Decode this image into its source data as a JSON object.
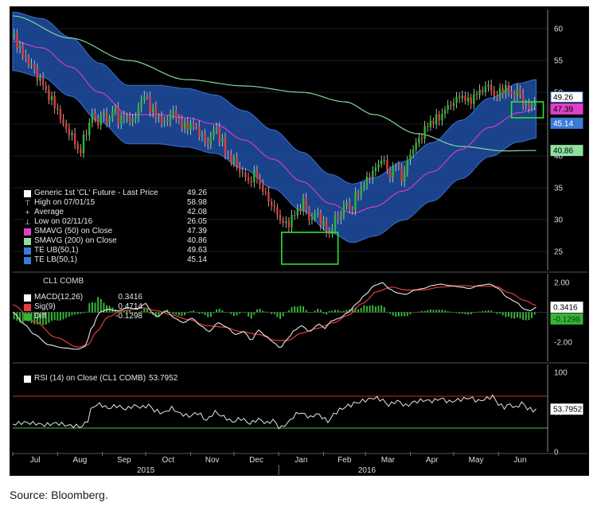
{
  "colors": {
    "background": "#000000",
    "candle_up": "#2db82d",
    "candle_down": "#e03c3c",
    "wick_up": "#bfe8bf",
    "wick_down": "#f2c0c0",
    "band_fill": "#1f4fa3",
    "sma50": "#d63ac8",
    "sma200": "#7fd99a",
    "macd": "#e6e6e6",
    "signal": "#e23c3c",
    "diff": "#36b536",
    "rsi": "#e6e6e6",
    "rsi_upper": "#cc2a2a",
    "rsi_lower": "#3ccd3c",
    "highlight_box": "#33e033",
    "axis_text": "#dddddd"
  },
  "chart_data": {
    "type": "line",
    "title": "",
    "xlabel": "",
    "months": [
      "Jul",
      "Aug",
      "Sep",
      "Oct",
      "Nov",
      "Dec",
      "Jan",
      "Feb",
      "Mar",
      "Apr",
      "May",
      "Jun"
    ],
    "month_start_days": [
      0,
      31,
      62,
      92,
      123,
      153,
      184,
      215,
      244,
      275,
      305,
      336
    ],
    "years": [
      {
        "label": "2015",
        "day": 92
      },
      {
        "label": "2016",
        "day": 245
      }
    ],
    "x_range_days": [
      0,
      370
    ],
    "x_unit": "days since 2015-07-01",
    "price_panel": {
      "ylim": [
        22,
        63
      ],
      "yticks": [
        25,
        30,
        35,
        40,
        45,
        50,
        55,
        60
      ],
      "legend_title": "Generic 1st 'CL' Future - Last Price",
      "legend_title_value": "49.26",
      "last_price": 49.26,
      "high": {
        "label": "High on 07/01/15",
        "value": 58.98
      },
      "average": {
        "label": "Average",
        "value": 42.08
      },
      "low": {
        "label": "Low on 02/11/16",
        "value": 26.05
      },
      "close_anchors": [
        [
          0,
          58.8
        ],
        [
          5,
          57.0
        ],
        [
          8,
          55.5
        ],
        [
          12,
          54.5
        ],
        [
          18,
          52.2
        ],
        [
          25,
          49.5
        ],
        [
          30,
          47.5
        ],
        [
          36,
          44.5
        ],
        [
          40,
          43.5
        ],
        [
          43,
          42.0
        ],
        [
          46,
          40.5
        ],
        [
          50,
          43.0
        ],
        [
          52,
          44.5
        ],
        [
          55,
          46.8
        ],
        [
          58,
          45.0
        ],
        [
          62,
          46.5
        ],
        [
          66,
          45.5
        ],
        [
          70,
          47.5
        ],
        [
          73,
          45.8
        ],
        [
          78,
          46.0
        ],
        [
          84,
          45.5
        ],
        [
          88,
          48.5
        ],
        [
          92,
          49.6
        ],
        [
          95,
          47.5
        ],
        [
          100,
          46.2
        ],
        [
          105,
          45.0
        ],
        [
          110,
          47.0
        ],
        [
          114,
          45.8
        ],
        [
          118,
          44.5
        ],
        [
          124,
          45.0
        ],
        [
          130,
          43.5
        ],
        [
          134,
          41.8
        ],
        [
          140,
          44.3
        ],
        [
          144,
          42.8
        ],
        [
          148,
          40.0
        ],
        [
          153,
          39.2
        ],
        [
          158,
          37.5
        ],
        [
          163,
          36.0
        ],
        [
          168,
          37.2
        ],
        [
          172,
          35.0
        ],
        [
          176,
          33.5
        ],
        [
          180,
          32.0
        ],
        [
          185,
          30.0
        ],
        [
          190,
          29.0
        ],
        [
          193,
          30.5
        ],
        [
          197,
          31.2
        ],
        [
          201,
          33.0
        ],
        [
          205,
          30.0
        ],
        [
          210,
          31.0
        ],
        [
          214,
          29.5
        ],
        [
          219,
          27.5
        ],
        [
          222,
          29.8
        ],
        [
          226,
          30.5
        ],
        [
          230,
          32.5
        ],
        [
          234,
          31.5
        ],
        [
          238,
          34.0
        ],
        [
          244,
          35.8
        ],
        [
          248,
          37.3
        ],
        [
          252,
          38.3
        ],
        [
          256,
          39.8
        ],
        [
          260,
          37.0
        ],
        [
          265,
          38.5
        ],
        [
          270,
          36.5
        ],
        [
          274,
          40.0
        ],
        [
          278,
          41.5
        ],
        [
          282,
          43.0
        ],
        [
          286,
          44.5
        ],
        [
          290,
          45.5
        ],
        [
          295,
          46.0
        ],
        [
          300,
          47.5
        ],
        [
          305,
          48.5
        ],
        [
          310,
          49.5
        ],
        [
          315,
          48.5
        ],
        [
          320,
          49.5
        ],
        [
          325,
          50.5
        ],
        [
          330,
          51.0
        ],
        [
          334,
          49.0
        ],
        [
          338,
          50.5
        ],
        [
          342,
          50.5
        ],
        [
          346,
          49.5
        ],
        [
          350,
          50.2
        ],
        [
          354,
          48.0
        ],
        [
          358,
          47.5
        ],
        [
          362,
          49.26
        ]
      ],
      "sma50_anchors": [
        [
          0,
          58.0
        ],
        [
          20,
          57.0
        ],
        [
          40,
          54.0
        ],
        [
          60,
          50.0
        ],
        [
          80,
          46.5
        ],
        [
          100,
          46.5
        ],
        [
          120,
          46.0
        ],
        [
          140,
          45.0
        ],
        [
          160,
          42.5
        ],
        [
          180,
          39.5
        ],
        [
          200,
          36.0
        ],
        [
          220,
          32.5
        ],
        [
          235,
          31.0
        ],
        [
          250,
          32.0
        ],
        [
          270,
          34.5
        ],
        [
          290,
          37.5
        ],
        [
          310,
          41.0
        ],
        [
          330,
          44.5
        ],
        [
          350,
          46.8
        ],
        [
          362,
          47.39
        ]
      ],
      "sma50_last": 47.39,
      "sma200_anchors": [
        [
          0,
          62.0
        ],
        [
          40,
          58.5
        ],
        [
          80,
          55.0
        ],
        [
          120,
          52.0
        ],
        [
          160,
          51.0
        ],
        [
          200,
          50.0
        ],
        [
          230,
          48.5
        ],
        [
          250,
          46.5
        ],
        [
          280,
          43.5
        ],
        [
          310,
          41.5
        ],
        [
          340,
          40.8
        ],
        [
          362,
          40.86
        ]
      ],
      "sma200_last": 40.86,
      "band_half_width": 4.6,
      "te_ub_last": 49.63,
      "te_lb_last": 45.14,
      "value_tags": [
        {
          "label": "49.26",
          "value": 49.26,
          "color": "#ffffff",
          "text_color": "#000000",
          "border": "#3a7bd5"
        },
        {
          "label": "47.39",
          "value": 47.39,
          "color": "#e040c8",
          "text_color": "#000000",
          "border": "#e040c8"
        },
        {
          "label": "45.14",
          "value": 45.14,
          "color": "#3a7bd5",
          "text_color": "#ffffff",
          "border": "#3a7bd5"
        },
        {
          "label": "40.86",
          "value": 40.86,
          "color": "#8fe0a0",
          "text_color": "#000000",
          "border": "#8fe0a0"
        }
      ],
      "highlight_boxes": [
        {
          "x": [
            186,
            225
          ],
          "y": [
            23.0,
            28.0
          ]
        },
        {
          "x": [
            345,
            367
          ],
          "y": [
            46.0,
            48.5
          ]
        }
      ],
      "legend_entries": [
        {
          "symbol": "box",
          "swatch": "#ffffff",
          "label": "Generic 1st 'CL' Future - Last Price",
          "value": "49.26"
        },
        {
          "symbol": "text",
          "char": "⊤",
          "label": "High on 07/01/15",
          "value": "58.98"
        },
        {
          "symbol": "text",
          "char": "+",
          "label": "Average",
          "value": "42.08"
        },
        {
          "symbol": "text",
          "char": "⊥",
          "label": "Low on 02/11/16",
          "value": "26.05"
        },
        {
          "symbol": "box",
          "swatch": "#e040c8",
          "label": "SMAVG (50) on Close",
          "value": "47.39"
        },
        {
          "symbol": "box",
          "swatch": "#8fe0a0",
          "label": "SMAVG (200) on Close",
          "value": "40.86"
        },
        {
          "symbol": "box",
          "swatch": "#3a7bd5",
          "label": "TE UB(50,1)",
          "value": "49.63"
        },
        {
          "symbol": "box",
          "swatch": "#3a7bd5",
          "label": "TE LB(50,1)",
          "value": "45.14"
        }
      ]
    },
    "macd_panel": {
      "title": "CL1 COMB",
      "ylim": [
        -3.3,
        2.6
      ],
      "yticks": [
        {
          "value": 2.0,
          "label": "2.00"
        },
        {
          "value": -2.0,
          "label": "-2.00"
        }
      ],
      "macd_anchors": [
        [
          0,
          0.0
        ],
        [
          8,
          -0.8
        ],
        [
          15,
          -1.5
        ],
        [
          25,
          -2.2
        ],
        [
          35,
          -2.4
        ],
        [
          45,
          -2.5
        ],
        [
          50,
          -2.3
        ],
        [
          55,
          -1.0
        ],
        [
          60,
          0.0
        ],
        [
          66,
          0.2
        ],
        [
          72,
          0.1
        ],
        [
          80,
          0.3
        ],
        [
          86,
          0.2
        ],
        [
          92,
          0.6
        ],
        [
          96,
          0.0
        ],
        [
          100,
          -0.3
        ],
        [
          106,
          0.1
        ],
        [
          112,
          -0.4
        ],
        [
          118,
          -0.7
        ],
        [
          124,
          -0.4
        ],
        [
          130,
          -0.9
        ],
        [
          136,
          -1.3
        ],
        [
          142,
          -0.7
        ],
        [
          148,
          -1.0
        ],
        [
          154,
          -1.5
        ],
        [
          160,
          -1.3
        ],
        [
          165,
          -1.9
        ],
        [
          170,
          -1.2
        ],
        [
          175,
          -1.6
        ],
        [
          180,
          -2.0
        ],
        [
          185,
          -2.4
        ],
        [
          190,
          -1.8
        ],
        [
          195,
          -1.2
        ],
        [
          200,
          -0.9
        ],
        [
          205,
          -1.3
        ],
        [
          212,
          -0.8
        ],
        [
          216,
          -1.1
        ],
        [
          220,
          -0.6
        ],
        [
          226,
          -0.4
        ],
        [
          232,
          0.0
        ],
        [
          238,
          0.6
        ],
        [
          244,
          1.2
        ],
        [
          250,
          1.8
        ],
        [
          256,
          2.0
        ],
        [
          260,
          1.6
        ],
        [
          266,
          1.3
        ],
        [
          272,
          1.2
        ],
        [
          278,
          1.5
        ],
        [
          284,
          1.6
        ],
        [
          290,
          1.8
        ],
        [
          296,
          1.9
        ],
        [
          302,
          1.8
        ],
        [
          310,
          1.7
        ],
        [
          316,
          1.6
        ],
        [
          322,
          1.8
        ],
        [
          330,
          1.9
        ],
        [
          336,
          1.6
        ],
        [
          342,
          1.0
        ],
        [
          348,
          0.7
        ],
        [
          354,
          0.2
        ],
        [
          358,
          0.1
        ],
        [
          362,
          0.34
        ]
      ],
      "signal_anchors": [
        [
          0,
          0.5
        ],
        [
          15,
          -0.6
        ],
        [
          30,
          -1.7
        ],
        [
          45,
          -2.35
        ],
        [
          52,
          -2.2
        ],
        [
          58,
          -1.3
        ],
        [
          66,
          -0.3
        ],
        [
          76,
          0.1
        ],
        [
          90,
          0.3
        ],
        [
          100,
          0.1
        ],
        [
          110,
          -0.2
        ],
        [
          122,
          -0.5
        ],
        [
          134,
          -0.9
        ],
        [
          146,
          -1.0
        ],
        [
          158,
          -1.3
        ],
        [
          170,
          -1.5
        ],
        [
          182,
          -1.9
        ],
        [
          190,
          -1.9
        ],
        [
          200,
          -1.4
        ],
        [
          210,
          -1.1
        ],
        [
          222,
          -0.7
        ],
        [
          232,
          -0.2
        ],
        [
          242,
          0.6
        ],
        [
          252,
          1.4
        ],
        [
          262,
          1.7
        ],
        [
          272,
          1.5
        ],
        [
          284,
          1.5
        ],
        [
          296,
          1.7
        ],
        [
          310,
          1.8
        ],
        [
          322,
          1.75
        ],
        [
          334,
          1.75
        ],
        [
          344,
          1.3
        ],
        [
          354,
          0.8
        ],
        [
          362,
          0.47
        ]
      ],
      "legend_entries": [
        {
          "swatch": "#ffffff",
          "label": "MACD(12,26)",
          "value": "0.3416"
        },
        {
          "swatch": "#e23c3c",
          "label": "Sig(9)",
          "value": "0.4714"
        },
        {
          "swatch": "#36b536",
          "label": "Diff",
          "value": "-0.1298"
        }
      ],
      "value_tags": [
        {
          "label": "0.3416",
          "value": 0.34,
          "color": "#ffffff",
          "text_color": "#000000"
        },
        {
          "label": "-0.1298",
          "value": -0.45,
          "color": "#36b536",
          "text_color": "#0a3a0a"
        }
      ]
    },
    "rsi_panel": {
      "title": "RSI (14) on Close (CL1 COMB)",
      "title_value": "53.7952",
      "ylim": [
        0,
        110
      ],
      "yticks": [
        0,
        50,
        100
      ],
      "upper_line": 70,
      "lower_line": 30,
      "rsi_anchors": [
        [
          0,
          35
        ],
        [
          8,
          37
        ],
        [
          15,
          36
        ],
        [
          22,
          34
        ],
        [
          30,
          36
        ],
        [
          40,
          33
        ],
        [
          48,
          32
        ],
        [
          52,
          40
        ],
        [
          55,
          57
        ],
        [
          60,
          60
        ],
        [
          66,
          55
        ],
        [
          72,
          58
        ],
        [
          78,
          54
        ],
        [
          84,
          58
        ],
        [
          90,
          56
        ],
        [
          94,
          59
        ],
        [
          98,
          52
        ],
        [
          104,
          49
        ],
        [
          110,
          55
        ],
        [
          116,
          48
        ],
        [
          122,
          45
        ],
        [
          128,
          49
        ],
        [
          134,
          40
        ],
        [
          140,
          50
        ],
        [
          146,
          44
        ],
        [
          152,
          38
        ],
        [
          158,
          42
        ],
        [
          164,
          36
        ],
        [
          170,
          41
        ],
        [
          176,
          36
        ],
        [
          180,
          40
        ],
        [
          185,
          30
        ],
        [
          190,
          36
        ],
        [
          194,
          44
        ],
        [
          198,
          50
        ],
        [
          202,
          47
        ],
        [
          206,
          43
        ],
        [
          210,
          48
        ],
        [
          214,
          44
        ],
        [
          218,
          38
        ],
        [
          222,
          47
        ],
        [
          226,
          53
        ],
        [
          232,
          58
        ],
        [
          238,
          62
        ],
        [
          244,
          65
        ],
        [
          250,
          68
        ],
        [
          255,
          66
        ],
        [
          260,
          59
        ],
        [
          266,
          64
        ],
        [
          272,
          58
        ],
        [
          278,
          63
        ],
        [
          284,
          65
        ],
        [
          290,
          64
        ],
        [
          296,
          67
        ],
        [
          302,
          63
        ],
        [
          310,
          66
        ],
        [
          316,
          68
        ],
        [
          322,
          64
        ],
        [
          328,
          67
        ],
        [
          332,
          70
        ],
        [
          336,
          60
        ],
        [
          340,
          56
        ],
        [
          344,
          60
        ],
        [
          348,
          55
        ],
        [
          352,
          62
        ],
        [
          356,
          55
        ],
        [
          360,
          52
        ],
        [
          362,
          53.8
        ]
      ],
      "value_tag": {
        "label": "53.7952",
        "value": 53.8,
        "color": "#ffffff",
        "text_color": "#000000"
      }
    }
  },
  "source_note": "Source: Bloomberg."
}
